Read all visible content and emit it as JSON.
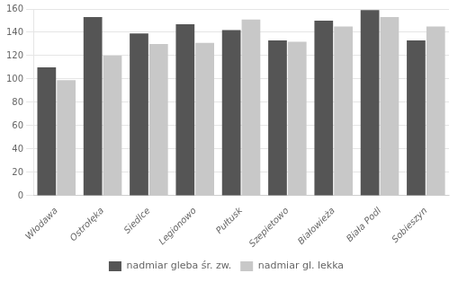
{
  "chart_data": {
    "type": "bar",
    "categories": [
      "Włodawa",
      "Ostrołęka",
      "Siedlce",
      "Legionowo",
      "Pułtusk",
      "Szepietowo",
      "Białowieża",
      "Biała Podl",
      "Sobieszyn"
    ],
    "series": [
      {
        "name": "nadmiar gleba śr. zw.",
        "color": "#555555",
        "values": [
          110,
          153,
          139,
          147,
          142,
          133,
          150,
          159,
          133
        ]
      },
      {
        "name": "nadmiar gl. lekka",
        "color": "#c8c8c8",
        "values": [
          99,
          120,
          130,
          131,
          151,
          132,
          145,
          153,
          145
        ]
      }
    ],
    "ylim": [
      0,
      160
    ],
    "yticks": [
      0,
      20,
      40,
      60,
      80,
      100,
      120,
      140,
      160
    ],
    "grid": true,
    "legend": "bottom"
  }
}
